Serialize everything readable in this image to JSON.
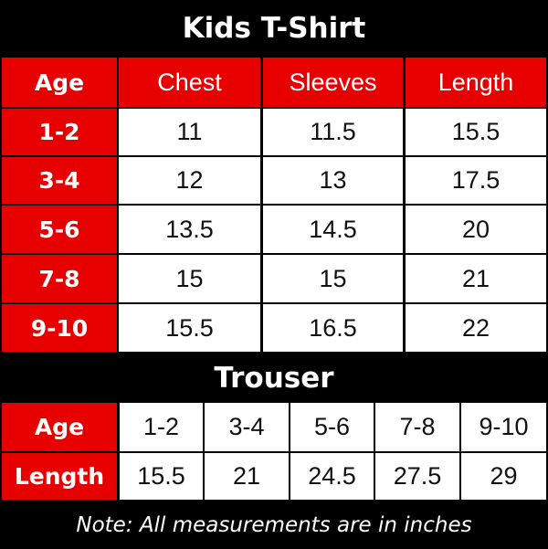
{
  "shirt": {
    "title": "Kids T-Shirt",
    "headers": [
      "Age",
      "Chest",
      "Sleeves",
      "Length"
    ],
    "rows": [
      [
        "1-2",
        "11",
        "11.5",
        "15.5"
      ],
      [
        "3-4",
        "12",
        "13",
        "17.5"
      ],
      [
        "5-6",
        "13.5",
        "14.5",
        "20"
      ],
      [
        "7-8",
        "15",
        "15",
        "21"
      ],
      [
        "9-10",
        "15.5",
        "16.5",
        "22"
      ]
    ]
  },
  "trouser": {
    "title": "Trouser",
    "age_label": "Age",
    "ages": [
      "1-2",
      "3-4",
      "5-6",
      "7-8",
      "9-10"
    ],
    "length_label": "Length",
    "lengths": [
      "15.5",
      "21",
      "24.5",
      "27.5",
      "29"
    ]
  },
  "note": "Note: All measurements are in inches",
  "colors": {
    "accent": "#e60000",
    "background": "#000000"
  }
}
